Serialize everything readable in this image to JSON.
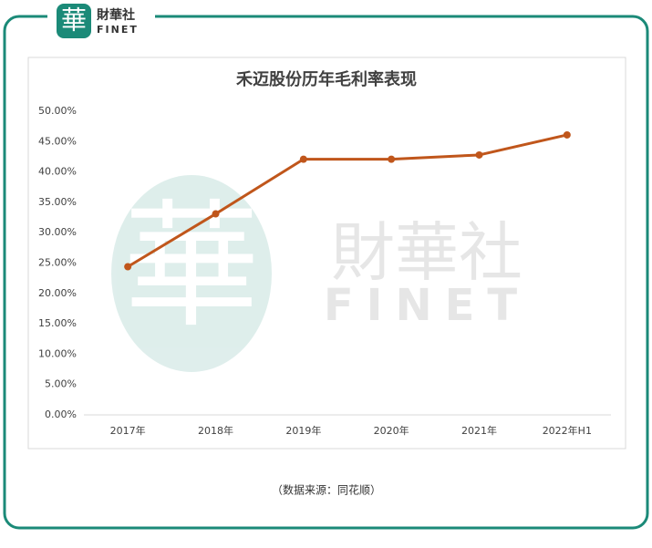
{
  "logo": {
    "icon": "華",
    "name": "財華社",
    "name_en": "FINET"
  },
  "watermark": {
    "icon": "華",
    "name": "財華社",
    "name_en": "FINET"
  },
  "chart_data": {
    "type": "line",
    "title": "禾迈股份历年毛利率表现",
    "categories": [
      "2017年",
      "2018年",
      "2019年",
      "2020年",
      "2021年",
      "2022年H1"
    ],
    "series": [
      {
        "name": "毛利率",
        "color": "#c0561b",
        "values": [
          24.4,
          33.1,
          42.1,
          42.1,
          42.8,
          46.1
        ]
      }
    ],
    "ylim": [
      0,
      50
    ],
    "yticks": [
      {
        "value": 0,
        "label": "0.00%"
      },
      {
        "value": 5,
        "label": "5.00%"
      },
      {
        "value": 10,
        "label": "10.00%"
      },
      {
        "value": 15,
        "label": "15.00%"
      },
      {
        "value": 20,
        "label": "20.00%"
      },
      {
        "value": 25,
        "label": "25.00%"
      },
      {
        "value": 30,
        "label": "30.00%"
      },
      {
        "value": 35,
        "label": "35.00%"
      },
      {
        "value": 40,
        "label": "40.00%"
      },
      {
        "value": 45,
        "label": "45.00%"
      },
      {
        "value": 50,
        "label": "50.00%"
      }
    ],
    "grid": false,
    "legend": false
  },
  "source": "（数据来源：同花顺）"
}
